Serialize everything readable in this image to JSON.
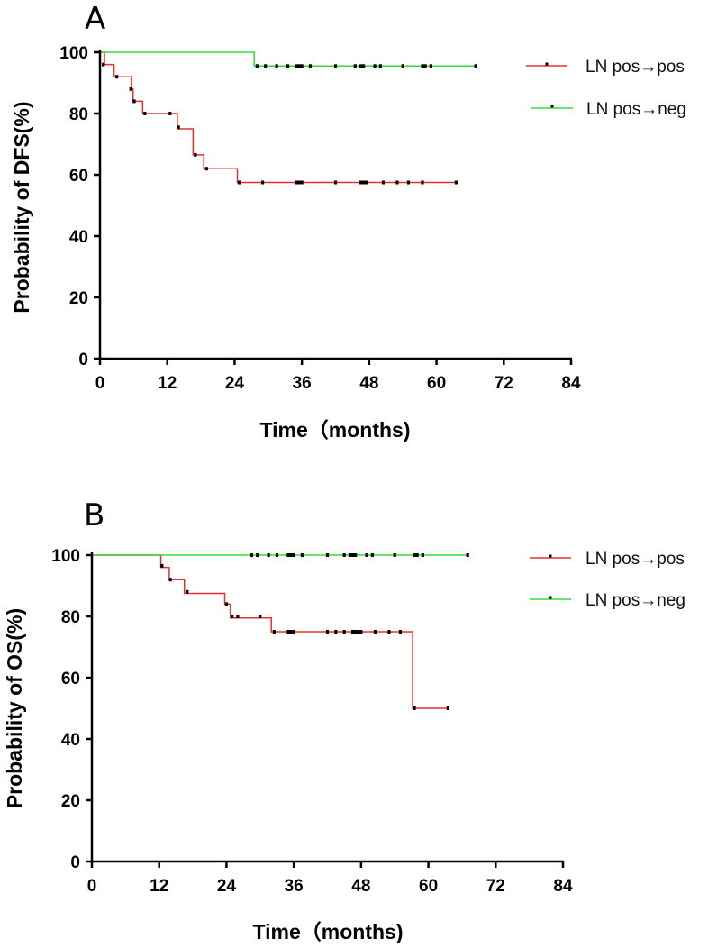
{
  "chart_data": [
    {
      "panel": "A",
      "type": "line",
      "subtype": "kaplan-meier",
      "xlabel": "Time（months)",
      "ylabel": "Probability of DFS(%)",
      "xlim": [
        0,
        84
      ],
      "ylim": [
        0,
        100
      ],
      "xticks": [
        0,
        12,
        24,
        36,
        48,
        60,
        72,
        84
      ],
      "yticks": [
        0,
        20,
        40,
        60,
        80,
        100
      ],
      "legend_position": "right",
      "series": [
        {
          "name": "LN pos→pos",
          "color": "#e8302a",
          "steps": [
            [
              0,
              100
            ],
            [
              0.8,
              96
            ],
            [
              2.5,
              92
            ],
            [
              5.6,
              88
            ],
            [
              5.9,
              84
            ],
            [
              7.6,
              80
            ],
            [
              13.8,
              75
            ],
            [
              16.6,
              66.5
            ],
            [
              18.5,
              62
            ],
            [
              24.5,
              57.5
            ],
            [
              63.5,
              57.5
            ]
          ],
          "censored": [
            [
              0.6,
              96
            ],
            [
              3,
              92
            ],
            [
              5.5,
              88
            ],
            [
              6.1,
              84
            ],
            [
              8,
              80
            ],
            [
              12.5,
              80
            ],
            [
              14,
              75.5
            ],
            [
              17,
              66.5
            ],
            [
              19,
              62
            ],
            [
              24.8,
              57.5
            ],
            [
              29,
              57.5
            ],
            [
              35,
              57.5
            ],
            [
              35.5,
              57.5
            ],
            [
              36,
              57.5
            ],
            [
              42,
              57.5
            ],
            [
              46.5,
              57.5
            ],
            [
              47,
              57.5
            ],
            [
              47.5,
              57.5
            ],
            [
              50.5,
              57.5
            ],
            [
              53,
              57.5
            ],
            [
              55,
              57.5
            ],
            [
              57.5,
              57.5
            ],
            [
              63.5,
              57.5
            ]
          ]
        },
        {
          "name": "LN pos→neg",
          "color": "#33dd33",
          "steps": [
            [
              0,
              100
            ],
            [
              27.5,
              95.5
            ],
            [
              67,
              95.5
            ]
          ],
          "censored": [
            [
              28,
              95.5
            ],
            [
              29.5,
              95.5
            ],
            [
              31.5,
              95.5
            ],
            [
              33.5,
              95.5
            ],
            [
              35,
              95.5
            ],
            [
              35.5,
              95.5
            ],
            [
              36,
              95.5
            ],
            [
              37.5,
              95.5
            ],
            [
              42,
              95.5
            ],
            [
              45.5,
              95.5
            ],
            [
              46.5,
              95.5
            ],
            [
              47,
              95.5
            ],
            [
              49,
              95.5
            ],
            [
              50,
              95.5
            ],
            [
              54,
              95.5
            ],
            [
              57.5,
              95.5
            ],
            [
              58,
              95.5
            ],
            [
              59,
              95.5
            ],
            [
              67,
              95.5
            ]
          ]
        }
      ]
    },
    {
      "panel": "B",
      "type": "line",
      "subtype": "kaplan-meier",
      "xlabel": "Time（months)",
      "ylabel": "Probability of OS(%)",
      "xlim": [
        0,
        84
      ],
      "ylim": [
        0,
        100
      ],
      "xticks": [
        0,
        12,
        24,
        36,
        48,
        60,
        72,
        84
      ],
      "yticks": [
        0,
        20,
        40,
        60,
        80,
        100
      ],
      "legend_position": "right",
      "series": [
        {
          "name": "LN pos→pos",
          "color": "#e8302a",
          "steps": [
            [
              0,
              100
            ],
            [
              12.3,
              96
            ],
            [
              13.8,
              92
            ],
            [
              16.5,
              87.5
            ],
            [
              23.7,
              84
            ],
            [
              24.7,
              79.5
            ],
            [
              32,
              75
            ],
            [
              57.2,
              50
            ],
            [
              63.5,
              50
            ]
          ],
          "censored": [
            [
              12.5,
              96.5
            ],
            [
              14,
              92
            ],
            [
              17,
              88
            ],
            [
              24,
              84
            ],
            [
              25,
              80
            ],
            [
              26,
              80
            ],
            [
              30,
              80
            ],
            [
              32.5,
              75
            ],
            [
              35,
              75
            ],
            [
              35.5,
              75
            ],
            [
              36,
              75
            ],
            [
              42,
              75
            ],
            [
              43.5,
              75
            ],
            [
              45,
              75
            ],
            [
              46.5,
              75
            ],
            [
              47,
              75
            ],
            [
              47.5,
              75
            ],
            [
              48,
              75
            ],
            [
              50.5,
              75
            ],
            [
              53,
              75
            ],
            [
              55,
              75
            ],
            [
              57.5,
              50
            ],
            [
              63.5,
              50
            ]
          ]
        },
        {
          "name": "LN pos→neg",
          "color": "#33dd33",
          "steps": [
            [
              0,
              100
            ],
            [
              67,
              100
            ]
          ],
          "censored": [
            [
              28.5,
              100
            ],
            [
              29.5,
              100
            ],
            [
              31.5,
              100
            ],
            [
              33,
              100
            ],
            [
              35,
              100
            ],
            [
              35.5,
              100
            ],
            [
              36,
              100
            ],
            [
              37.5,
              100
            ],
            [
              42,
              100
            ],
            [
              45,
              100
            ],
            [
              46,
              100
            ],
            [
              46.5,
              100
            ],
            [
              47,
              100
            ],
            [
              49,
              100
            ],
            [
              50,
              100
            ],
            [
              54,
              100
            ],
            [
              57.5,
              100
            ],
            [
              58,
              100
            ],
            [
              59,
              100
            ],
            [
              67,
              100
            ]
          ]
        }
      ]
    }
  ]
}
